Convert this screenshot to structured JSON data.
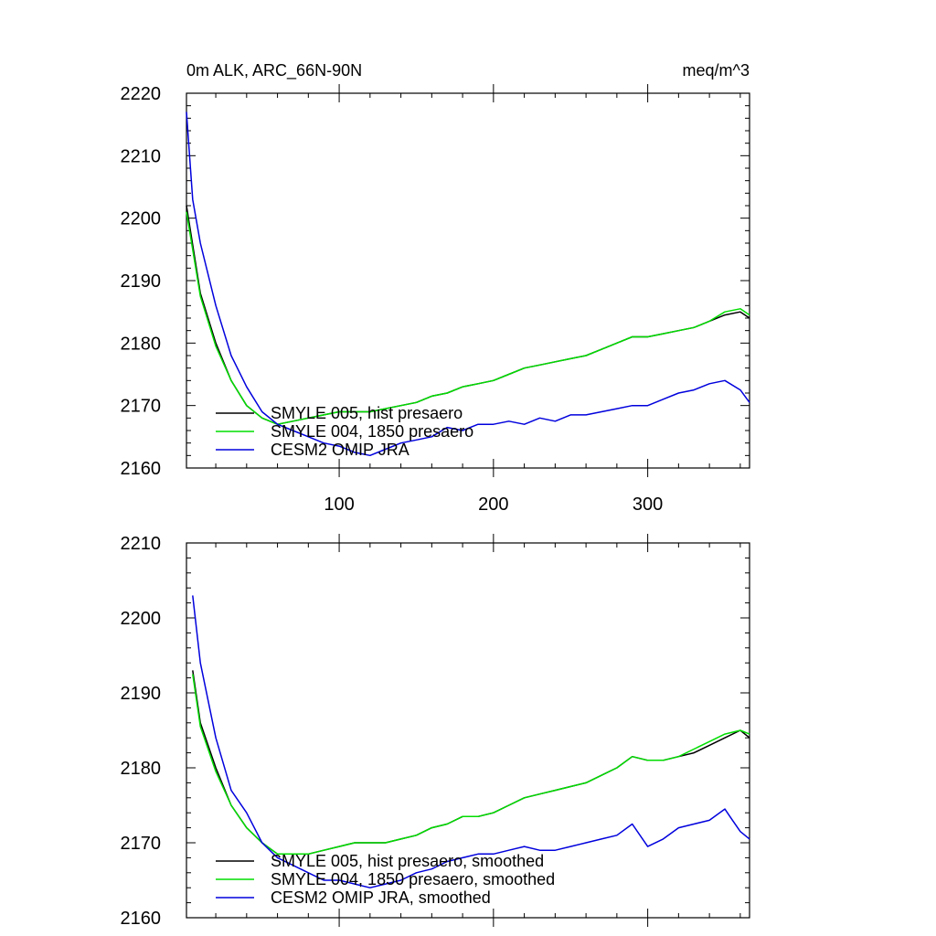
{
  "chart_data": [
    {
      "type": "line",
      "title_left": "0m ALK, ARC_66N-90N",
      "title_right": "meq/m^3",
      "xlim": [
        1,
        366
      ],
      "ylim": [
        2160,
        2220
      ],
      "yticks": [
        2160,
        2170,
        2180,
        2190,
        2200,
        2210,
        2220
      ],
      "xticks": [
        100,
        200,
        300
      ],
      "xtick_labels": [
        "100",
        "200",
        "300"
      ],
      "grid": false,
      "legend_position": "lower-left",
      "series": [
        {
          "name": "SMYLE 005, hist presaero",
          "color": "#000000",
          "x": [
            1,
            10,
            20,
            30,
            40,
            50,
            60,
            70,
            80,
            90,
            100,
            110,
            120,
            130,
            140,
            150,
            160,
            170,
            180,
            190,
            200,
            210,
            220,
            230,
            240,
            250,
            260,
            270,
            280,
            290,
            300,
            310,
            320,
            330,
            340,
            350,
            360,
            366
          ],
          "y": [
            2202,
            2188,
            2180,
            2174,
            2170,
            2168,
            2167,
            2167.5,
            2168,
            2168.5,
            2169,
            2169,
            2169,
            2169.5,
            2170,
            2170.5,
            2171.5,
            2172,
            2173,
            2173.5,
            2174,
            2175,
            2176,
            2176.5,
            2177,
            2177.5,
            2178,
            2179,
            2180,
            2181,
            2181,
            2181.5,
            2182,
            2182.5,
            2183.5,
            2184.5,
            2185,
            2184
          ]
        },
        {
          "name": "SMYLE 004, 1850 presaero",
          "color": "#00dd00",
          "x": [
            1,
            10,
            20,
            30,
            40,
            50,
            60,
            70,
            80,
            90,
            100,
            110,
            120,
            130,
            140,
            150,
            160,
            170,
            180,
            190,
            200,
            210,
            220,
            230,
            240,
            250,
            260,
            270,
            280,
            290,
            300,
            310,
            320,
            330,
            340,
            350,
            360,
            366
          ],
          "y": [
            2201,
            2187.5,
            2179.5,
            2174,
            2170,
            2168,
            2167,
            2167.5,
            2168,
            2168.5,
            2169,
            2169,
            2169,
            2169.5,
            2170,
            2170.5,
            2171.5,
            2172,
            2173,
            2173.5,
            2174,
            2175,
            2176,
            2176.5,
            2177,
            2177.5,
            2178,
            2179,
            2180,
            2181,
            2181,
            2181.5,
            2182,
            2182.5,
            2183.5,
            2185,
            2185.5,
            2184.5
          ]
        },
        {
          "name": "CESM2 OMIP JRA",
          "color": "#0000dd",
          "x": [
            1,
            5,
            10,
            20,
            30,
            40,
            50,
            60,
            70,
            80,
            90,
            100,
            110,
            120,
            130,
            140,
            150,
            160,
            170,
            180,
            190,
            200,
            210,
            220,
            230,
            240,
            250,
            260,
            270,
            280,
            290,
            300,
            310,
            320,
            330,
            340,
            350,
            360,
            366
          ],
          "y": [
            2217,
            2203,
            2196,
            2186,
            2178,
            2173,
            2169,
            2167,
            2166,
            2165,
            2164,
            2163.5,
            2162.5,
            2162,
            2163,
            2164,
            2164.5,
            2165,
            2166.5,
            2166,
            2167,
            2167,
            2167.5,
            2167,
            2168,
            2167.5,
            2168.5,
            2168.5,
            2169,
            2169.5,
            2170,
            2170,
            2171,
            2172,
            2172.5,
            2173.5,
            2174,
            2172.5,
            2170.5
          ]
        }
      ]
    },
    {
      "type": "line",
      "xlim": [
        1,
        366
      ],
      "ylim": [
        2160,
        2210
      ],
      "yticks": [
        2160,
        2170,
        2180,
        2190,
        2200,
        2210
      ],
      "xticks": [
        100,
        200,
        300
      ],
      "grid": false,
      "legend_position": "lower-left",
      "series": [
        {
          "name": "SMYLE 005, hist presaero, smoothed",
          "color": "#000000",
          "x": [
            5,
            10,
            20,
            30,
            40,
            50,
            60,
            70,
            80,
            90,
            100,
            110,
            120,
            130,
            140,
            150,
            160,
            170,
            180,
            190,
            200,
            210,
            220,
            230,
            240,
            250,
            260,
            270,
            280,
            290,
            300,
            310,
            320,
            330,
            340,
            350,
            360,
            366
          ],
          "y": [
            2193,
            2186,
            2180,
            2175,
            2172,
            2170,
            2168.5,
            2168.5,
            2168.5,
            2169,
            2169.5,
            2170,
            2170,
            2170,
            2170.5,
            2171,
            2172,
            2172.5,
            2173.5,
            2173.5,
            2174,
            2175,
            2176,
            2176.5,
            2177,
            2177.5,
            2178,
            2179,
            2180,
            2181.5,
            2181,
            2181,
            2181.5,
            2182,
            2183,
            2184,
            2185,
            2184
          ]
        },
        {
          "name": "SMYLE 004, 1850 presaero, smoothed",
          "color": "#00dd00",
          "x": [
            5,
            10,
            20,
            30,
            40,
            50,
            60,
            70,
            80,
            90,
            100,
            110,
            120,
            130,
            140,
            150,
            160,
            170,
            180,
            190,
            200,
            210,
            220,
            230,
            240,
            250,
            260,
            270,
            280,
            290,
            300,
            310,
            320,
            330,
            340,
            350,
            360,
            366
          ],
          "y": [
            2192.5,
            2185.5,
            2179.5,
            2175,
            2172,
            2170,
            2168.5,
            2168.5,
            2168.5,
            2169,
            2169.5,
            2170,
            2170,
            2170,
            2170.5,
            2171,
            2172,
            2172.5,
            2173.5,
            2173.5,
            2174,
            2175,
            2176,
            2176.5,
            2177,
            2177.5,
            2178,
            2179,
            2180,
            2181.5,
            2181,
            2181,
            2181.5,
            2182.5,
            2183.5,
            2184.5,
            2185,
            2184.5
          ]
        },
        {
          "name": "CESM2 OMIP JRA, smoothed",
          "color": "#0000dd",
          "x": [
            5,
            10,
            20,
            30,
            40,
            50,
            60,
            70,
            80,
            90,
            100,
            110,
            120,
            130,
            140,
            150,
            160,
            170,
            180,
            190,
            200,
            210,
            220,
            230,
            240,
            250,
            260,
            270,
            280,
            290,
            300,
            310,
            320,
            330,
            340,
            350,
            355,
            360,
            366
          ],
          "y": [
            2203,
            2194,
            2184,
            2177,
            2174,
            2170,
            2168,
            2167,
            2166,
            2165,
            2165,
            2164.5,
            2164,
            2164.5,
            2165,
            2166,
            2166.5,
            2167.5,
            2168,
            2168.5,
            2168.5,
            2169,
            2169.5,
            2169,
            2169,
            2169.5,
            2170,
            2170.5,
            2171,
            2172.5,
            2169.5,
            2170.5,
            2172,
            2172.5,
            2173,
            2174.5,
            2173,
            2171.5,
            2170.5
          ]
        }
      ]
    }
  ]
}
